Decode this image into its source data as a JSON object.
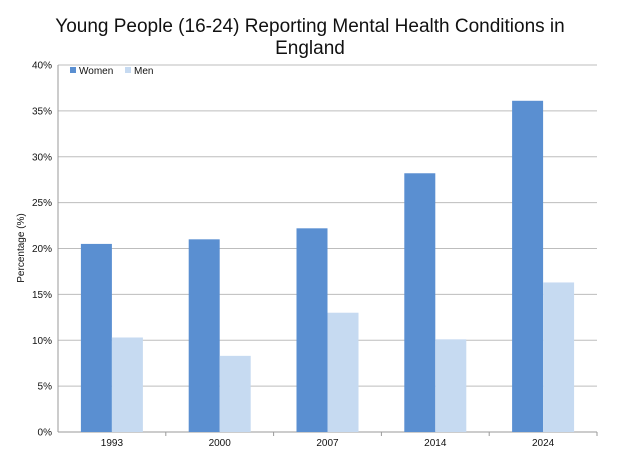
{
  "chart_data": {
    "type": "bar",
    "title_lines": [
      "Young People (16-24) Reporting Mental Health Conditions in",
      "England"
    ],
    "xlabel": "",
    "ylabel": "Percentage (%)",
    "categories": [
      "1993",
      "2000",
      "2007",
      "2014",
      "2024"
    ],
    "series": [
      {
        "name": "Women",
        "color": "#5a8fd1",
        "values": [
          20.5,
          21.0,
          22.2,
          28.2,
          36.1
        ]
      },
      {
        "name": "Men",
        "color": "#c6daf1",
        "values": [
          10.3,
          8.3,
          13.0,
          10.1,
          16.3
        ]
      }
    ],
    "ylim": [
      0,
      40
    ],
    "yticks": [
      "0%",
      "5%",
      "10%",
      "15%",
      "20%",
      "25%",
      "30%",
      "35%",
      "40%"
    ],
    "grid": true,
    "legend_position": "top-left"
  }
}
